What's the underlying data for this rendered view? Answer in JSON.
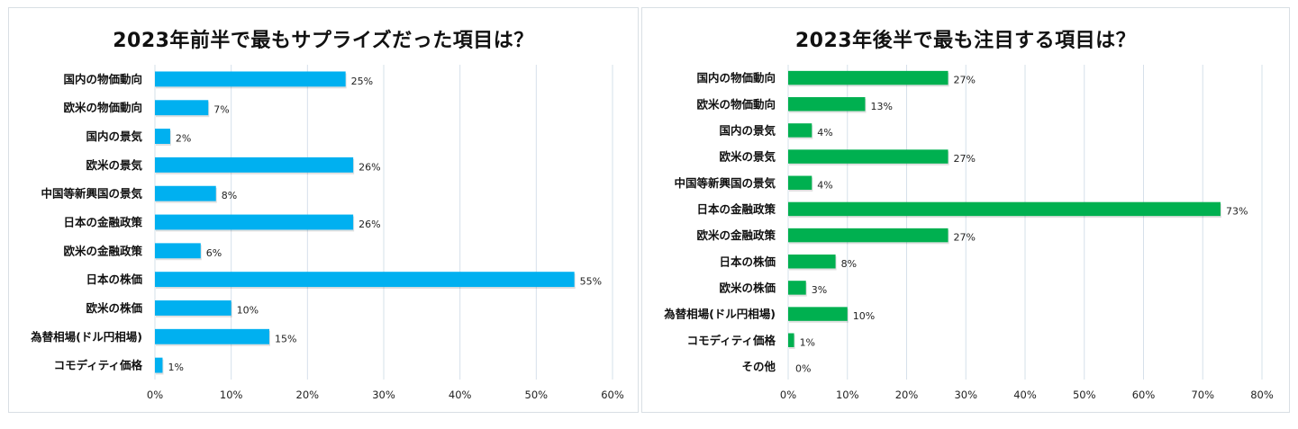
{
  "chart_data": [
    {
      "type": "bar",
      "orientation": "horizontal",
      "title": "2023年前半で最もサプライズだった項目は？",
      "categories": [
        "国内の物価動向",
        "欧米の物価動向",
        "国内の景気",
        "欧米の景気",
        "中国等新興国の景気",
        "日本の金融政策",
        "欧米の金融政策",
        "日本の株価",
        "欧米の株価",
        "為替相場(ドル円相場)",
        "コモディティ価格"
      ],
      "values": [
        25,
        7,
        2,
        26,
        8,
        26,
        6,
        55,
        10,
        15,
        1
      ],
      "value_labels": [
        "25%",
        "7%",
        "2%",
        "26%",
        "8%",
        "26%",
        "6%",
        "55%",
        "10%",
        "15%",
        "1%"
      ],
      "xlim": [
        0,
        60
      ],
      "xticks": [
        0,
        10,
        20,
        30,
        40,
        50,
        60
      ],
      "xtick_labels": [
        "0%",
        "10%",
        "20%",
        "30%",
        "40%",
        "50%",
        "60%"
      ],
      "xlabel": "",
      "ylabel": "",
      "grid": "vertical",
      "legend": "none",
      "color": "#00b0f0"
    },
    {
      "type": "bar",
      "orientation": "horizontal",
      "title": "2023年後半で最も注目する項目は？",
      "categories": [
        "国内の物価動向",
        "欧米の物価動向",
        "国内の景気",
        "欧米の景気",
        "中国等新興国の景気",
        "日本の金融政策",
        "欧米の金融政策",
        "日本の株価",
        "欧米の株価",
        "為替相場(ドル円相場)",
        "コモディティ価格",
        "その他"
      ],
      "values": [
        27,
        13,
        4,
        27,
        4,
        73,
        27,
        8,
        3,
        10,
        1,
        0
      ],
      "value_labels": [
        "27%",
        "13%",
        "4%",
        "27%",
        "4%",
        "73%",
        "27%",
        "8%",
        "3%",
        "10%",
        "1%",
        "0%"
      ],
      "xlim": [
        0,
        80
      ],
      "xticks": [
        0,
        10,
        20,
        30,
        40,
        50,
        60,
        70,
        80
      ],
      "xtick_labels": [
        "0%",
        "10%",
        "20%",
        "30%",
        "40%",
        "50%",
        "60%",
        "70%",
        "80%"
      ],
      "xlabel": "",
      "ylabel": "",
      "grid": "vertical",
      "legend": "none",
      "color": "#00b050"
    }
  ]
}
